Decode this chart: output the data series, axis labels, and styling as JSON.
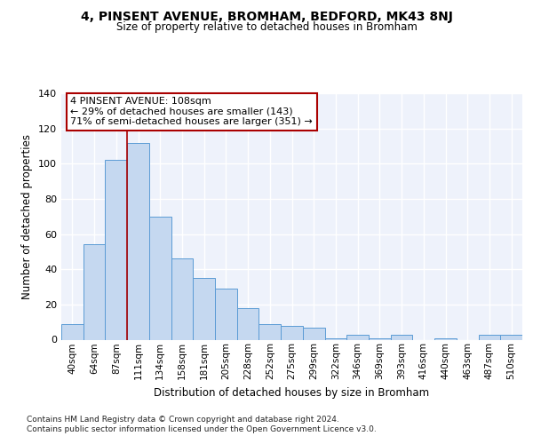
{
  "title": "4, PINSENT AVENUE, BROMHAM, BEDFORD, MK43 8NJ",
  "subtitle": "Size of property relative to detached houses in Bromham",
  "xlabel": "Distribution of detached houses by size in Bromham",
  "ylabel": "Number of detached properties",
  "categories": [
    "40sqm",
    "64sqm",
    "87sqm",
    "111sqm",
    "134sqm",
    "158sqm",
    "181sqm",
    "205sqm",
    "228sqm",
    "252sqm",
    "275sqm",
    "299sqm",
    "322sqm",
    "346sqm",
    "369sqm",
    "393sqm",
    "416sqm",
    "440sqm",
    "463sqm",
    "487sqm",
    "510sqm"
  ],
  "values": [
    9,
    54,
    102,
    112,
    70,
    46,
    35,
    29,
    18,
    9,
    8,
    7,
    1,
    3,
    1,
    3,
    0,
    1,
    0,
    3,
    3
  ],
  "bar_color": "#c5d8f0",
  "bar_edge_color": "#5b9bd5",
  "background_color": "#eef2fb",
  "grid_color": "#ffffff",
  "vline_x_index": 2.5,
  "vline_color": "#aa0000",
  "annotation_text": "4 PINSENT AVENUE: 108sqm\n← 29% of detached houses are smaller (143)\n71% of semi-detached houses are larger (351) →",
  "annotation_box_facecolor": "#ffffff",
  "annotation_box_edgecolor": "#aa0000",
  "ylim": [
    0,
    140
  ],
  "yticks": [
    0,
    20,
    40,
    60,
    80,
    100,
    120,
    140
  ],
  "footer_line1": "Contains HM Land Registry data © Crown copyright and database right 2024.",
  "footer_line2": "Contains public sector information licensed under the Open Government Licence v3.0."
}
